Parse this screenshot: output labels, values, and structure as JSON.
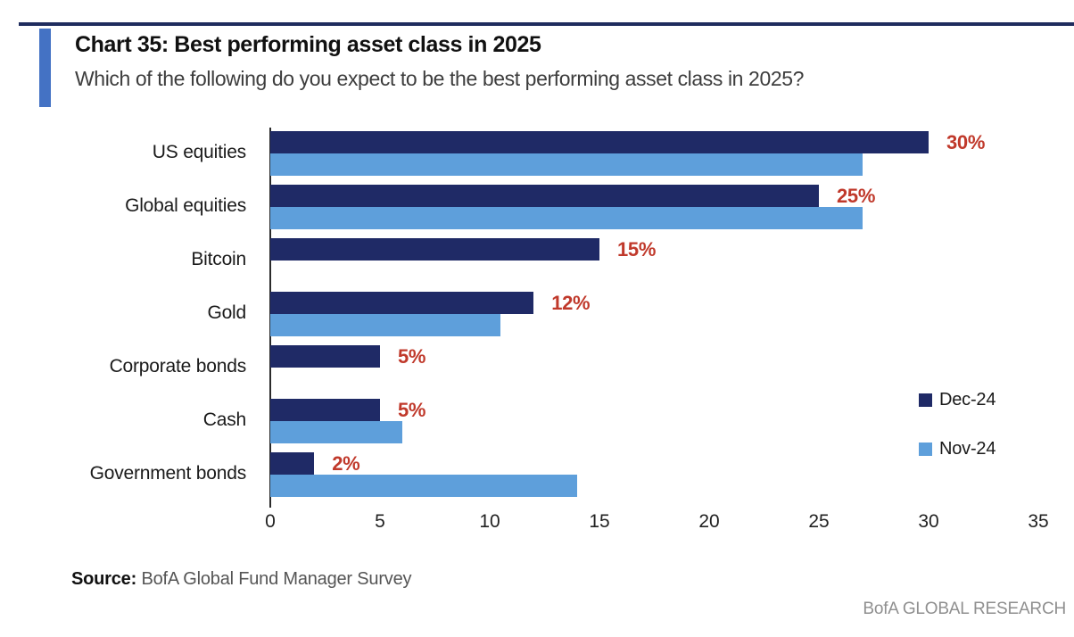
{
  "header": {
    "title": "Chart 35: Best performing asset class in 2025",
    "subtitle": "Which of the following do you expect to be the best performing asset class in 2025?"
  },
  "chart_data": {
    "type": "bar",
    "orientation": "horizontal",
    "title": "Chart 35: Best performing asset class in 2025",
    "subtitle": "Which of the following do you expect to be the best performing asset class in 2025?",
    "categories": [
      "US equities",
      "Global equities",
      "Bitcoin",
      "Gold",
      "Corporate bonds",
      "Cash",
      "Government bonds"
    ],
    "series": [
      {
        "name": "Dec-24",
        "color": "#1f2a66",
        "values": [
          30,
          25,
          15,
          12,
          5,
          5,
          2
        ],
        "data_labels": [
          "30%",
          "25%",
          "15%",
          "12%",
          "5%",
          "5%",
          "2%"
        ]
      },
      {
        "name": "Nov-24",
        "color": "#5e9fdb",
        "values": [
          27,
          27,
          null,
          10.5,
          null,
          6,
          14
        ],
        "data_labels": []
      }
    ],
    "xlim": [
      0,
      35
    ],
    "x_ticks": [
      "0",
      "5",
      "10",
      "15",
      "20",
      "25",
      "30",
      "35"
    ],
    "grid": "off",
    "legend_position": "right-middle",
    "data_label_color": "#c0392b"
  },
  "styles": {
    "accent_bar_color": "#4472c4",
    "top_rule_color": "#1f2c5e"
  },
  "footer": {
    "source_label": "Source:",
    "source_text": "BofA Global Fund Manager Survey",
    "brand": "BofA GLOBAL RESEARCH"
  }
}
